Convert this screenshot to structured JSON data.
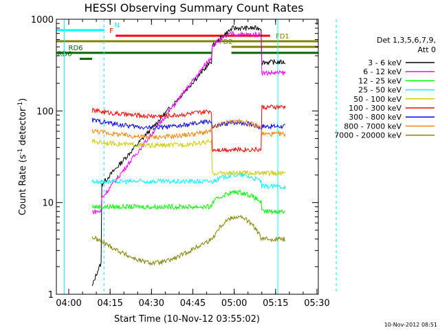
{
  "chart_data": {
    "type": "line",
    "title": "HESSI Observing Summary Count Rates",
    "xlabel": "Start Time (10-Nov-12 03:55:02)",
    "ylabel_main": "Count Rate (s",
    "ylabel_sup1": "-1",
    "ylabel_mid": " detector",
    "ylabel_sup2": "-1",
    "ylabel_end": ")",
    "y_scale": "log",
    "ylim": [
      1,
      1000
    ],
    "xlim_minutes": [
      -2.5,
      34.0
    ],
    "x_ticks": [
      {
        "label": "04:00",
        "min": 0
      },
      {
        "label": "04:15",
        "min": 15
      },
      {
        "label": "04:30",
        "min": 30
      },
      {
        "label": "04:45",
        "min": 45
      },
      {
        "label": "05:00",
        "min": 60
      },
      {
        "label": "05:15",
        "min": 75
      },
      {
        "label": "05:30",
        "min": 90
      }
    ],
    "y_ticks": [
      {
        "label": "1",
        "value": 1
      },
      {
        "label": "10",
        "value": 10
      },
      {
        "label": "100",
        "value": 100
      },
      {
        "label": "1000",
        "value": 1000
      }
    ],
    "legend_title_1": "Det 1,3,5,6,7,9,",
    "legend_title_2": "Att 0",
    "legend_placement": "right",
    "footer_timestamp": "10-Nov-2012 08:51",
    "flags": [
      {
        "label": "N",
        "color": "#00ffff",
        "y_value": 760,
        "x_start_min": -20,
        "x_end_min": 107,
        "gap": [
          13,
          97
        ],
        "label_min": 17.5
      },
      {
        "label": "F",
        "color": "#ff0000",
        "y_value": 660,
        "x_start_min": 17,
        "x_end_min": 73,
        "label_min": 15.5
      },
      {
        "label": "FD1",
        "color": "#808000",
        "y_value": 575,
        "x_start_min": -20,
        "x_end_min": 107,
        "label_min": 77.5
      },
      {
        "label": "FD2",
        "color": "#808000",
        "y_value": 500,
        "x_start_min": 59,
        "x_end_min": 107,
        "label_min": 57
      },
      {
        "label": "RD6",
        "color": "#006400",
        "y_value": 430,
        "x_start_min": -20,
        "x_end_min": 107,
        "gap": [
          52,
          59
        ],
        "label_min": 2.5
      },
      {
        "label": "RD6",
        "color": "#006400",
        "y_value": 370,
        "x_start_min": 4,
        "x_end_min": 8.5,
        "label_min": -1.5
      }
    ],
    "dashed_lines": [
      {
        "color": "#00ffff",
        "min": 12.8
      },
      {
        "color": "#00ffff",
        "min": 97.0
      }
    ],
    "solid_lines": [
      {
        "color": "#00ffff",
        "min": -1.6
      },
      {
        "color": "#00ffff",
        "min": 75.8
      }
    ],
    "series": [
      {
        "name": "3 - 6 keV",
        "color": "#000000"
      },
      {
        "name": "6 - 12 keV",
        "color": "#ff00ff"
      },
      {
        "name": "12 - 25 keV",
        "color": "#00ff00"
      },
      {
        "name": "25 - 50 keV",
        "color": "#00ffff"
      },
      {
        "name": "50 - 100 keV",
        "color": "#cccc00"
      },
      {
        "name": "100 - 300 keV",
        "color": "#ff0000"
      },
      {
        "name": "300 - 800 keV",
        "color": "#0000ff"
      },
      {
        "name": "800 - 7000 keV",
        "color": "#ff8000"
      },
      {
        "name": "7000 - 20000 keV",
        "color": "#808000"
      }
    ]
  }
}
